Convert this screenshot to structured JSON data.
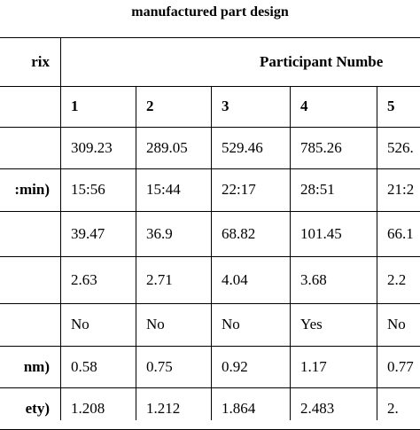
{
  "title": "manufactured part design",
  "table": {
    "header": {
      "label": "rix",
      "group": "Participant Numbe"
    },
    "columns": [
      "1",
      "2",
      "3",
      "4",
      "5"
    ],
    "rows": [
      {
        "cells": [
          "309.23",
          "289.05",
          "529.46",
          "785.26",
          "526."
        ]
      },
      {
        "label": ":min)",
        "cells": [
          "15:56",
          "15:44",
          "22:17",
          "28:51",
          "21:2"
        ]
      },
      {
        "cells": [
          "39.47",
          "36.9",
          "68.82",
          "101.45",
          "66.1"
        ]
      },
      {
        "cells": [
          "2.63",
          "2.71",
          "4.04",
          "3.68",
          "2.2"
        ]
      },
      {
        "cells": [
          "No",
          "No",
          "No",
          "Yes",
          "No"
        ]
      },
      {
        "label": "nm)",
        "cells": [
          "0.58",
          "0.75",
          "0.92",
          "1.17",
          "0.77"
        ]
      },
      {
        "label": "ety)",
        "cells": [
          "1.208",
          "1.212",
          "1.864",
          "2.483",
          "2."
        ]
      }
    ]
  }
}
